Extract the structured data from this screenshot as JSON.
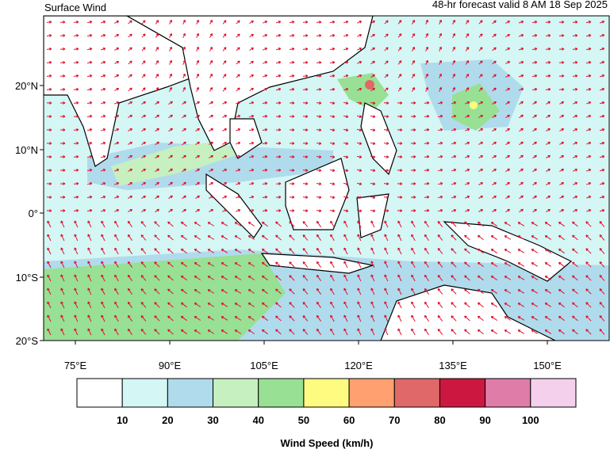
{
  "header": {
    "title": "Surface Wind",
    "subtitle": "48-hr forecast valid 8 AM 18 Sep 2025"
  },
  "map": {
    "lat_labels": [
      "20°N",
      "10°N",
      "0°",
      "10°S",
      "20°S"
    ],
    "lon_labels": [
      "75°E",
      "90°E",
      "105°E",
      "120°E",
      "135°E",
      "150°E"
    ]
  },
  "colorbar": {
    "title": "Wind Speed (km/h)",
    "colors": [
      "#ffffff",
      "#d4f6f4",
      "#b0dbec",
      "#c6f0c0",
      "#98e094",
      "#fffa80",
      "#ffa070",
      "#e06868",
      "#cc1840",
      "#e07ca8",
      "#f4d0ec"
    ],
    "labels": [
      "10",
      "20",
      "30",
      "40",
      "50",
      "60",
      "70",
      "80",
      "90",
      "100"
    ]
  }
}
